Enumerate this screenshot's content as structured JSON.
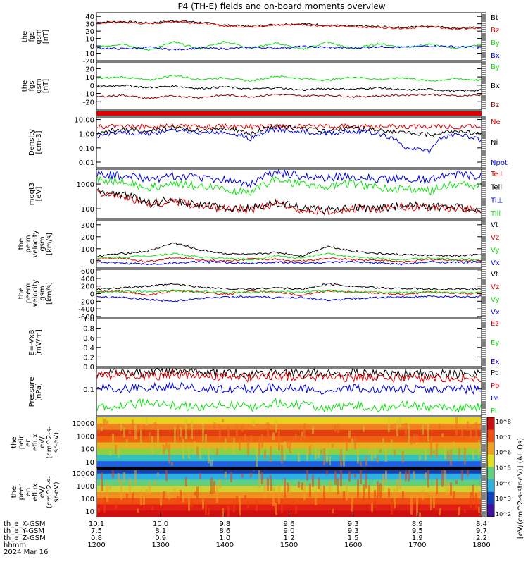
{
  "title": "P4 (TH-E) fields and on-board moments overview",
  "colors": {
    "black": "#000000",
    "red": "#e00000",
    "green": "#10e010",
    "blue": "#0000e0",
    "darkred": "#8b0000"
  },
  "chart_data": [
    {
      "type": "line",
      "ylabel": [
        "the",
        "fgs",
        "gsm",
        "[nT]"
      ],
      "yticks": [
        40,
        30,
        20,
        10,
        0,
        -10,
        -20
      ],
      "ylim": [
        -20,
        45
      ],
      "series": [
        {
          "name": "Bt",
          "color": "black",
          "values": [
            32,
            33,
            31,
            34,
            32,
            28,
            27,
            29,
            30,
            28,
            27,
            26,
            25,
            27,
            24,
            25
          ]
        },
        {
          "name": "Bz",
          "color": "red",
          "values": [
            31,
            32,
            30,
            33,
            31,
            27,
            26,
            28,
            29,
            27,
            26,
            25,
            24,
            26,
            23,
            24
          ]
        },
        {
          "name": "By",
          "color": "green",
          "values": [
            -2,
            3,
            -6,
            5,
            -4,
            6,
            -3,
            4,
            -5,
            5,
            -4,
            3,
            -2,
            2,
            -3,
            2
          ]
        },
        {
          "name": "Bx",
          "color": "blue",
          "values": [
            -3,
            -4,
            -2,
            -5,
            -3,
            -4,
            -2,
            -3,
            -1,
            -2,
            -3,
            -1,
            -2,
            0,
            -1,
            -2
          ]
        }
      ]
    },
    {
      "type": "line",
      "ylabel": [
        "the",
        "fgs",
        "gsm",
        "[nT]"
      ],
      "yticks": [
        20,
        10,
        0,
        -10,
        -20
      ],
      "ylim": [
        -30,
        28
      ],
      "series": [
        {
          "name": "By",
          "color": "green",
          "values": [
            8,
            10,
            6,
            12,
            7,
            9,
            5,
            11,
            8,
            6,
            10,
            7,
            9,
            5,
            8,
            6
          ]
        },
        {
          "name": "Bx",
          "color": "black",
          "values": [
            -2,
            0,
            -3,
            -1,
            -4,
            -2,
            -5,
            -3,
            -6,
            -4,
            -5,
            -3,
            -6,
            -5,
            -7,
            -6
          ]
        },
        {
          "name": "Bz",
          "color": "darkred",
          "values": [
            -14,
            -12,
            -16,
            -13,
            -15,
            -12,
            -14,
            -11,
            -13,
            -12,
            -14,
            -13,
            -12,
            -11,
            -13,
            -12
          ]
        }
      ]
    },
    {
      "type": "line",
      "log": true,
      "ylabel": [
        "Density",
        "[cm-3]"
      ],
      "yticks": [
        "10.00",
        "1.00",
        "0.10",
        "0.01"
      ],
      "ylim": [
        0.004,
        15
      ],
      "series": [
        {
          "name": "Ne",
          "color": "red",
          "values": [
            3,
            3.2,
            3.1,
            3.3,
            3.0,
            3.2,
            3.1,
            3.4,
            3.2,
            3.1,
            3.3,
            3.2,
            3.1,
            3.2,
            3.0,
            3.1
          ]
        },
        {
          "name": "Ni",
          "color": "black",
          "values": [
            1.2,
            2,
            1.5,
            2.5,
            1.8,
            2.2,
            1.0,
            3,
            2.0,
            1.5,
            2.5,
            1.6,
            1.2,
            0.8,
            1.5,
            0.9
          ]
        },
        {
          "name": "Npot",
          "color": "blue",
          "values": [
            0.5,
            1.2,
            0.9,
            1.5,
            1.1,
            1.4,
            0.4,
            2.0,
            1.3,
            1.0,
            1.5,
            0.9,
            0.1,
            0.05,
            0.9,
            0.3
          ]
        }
      ]
    },
    {
      "type": "line",
      "log": true,
      "ylabel": [
        "moqt3",
        "[eV]"
      ],
      "yticks": [
        "1000",
        "100"
      ],
      "ylim": [
        40,
        4000
      ],
      "series": [
        {
          "name": "Te⊥",
          "color": "red",
          "values": [
            400,
            300,
            150,
            200,
            120,
            100,
            90,
            150,
            90,
            80,
            100,
            90,
            120,
            110,
            100,
            80
          ]
        },
        {
          "name": "Tell",
          "color": "black",
          "values": [
            500,
            350,
            170,
            220,
            130,
            110,
            100,
            170,
            100,
            90,
            110,
            100,
            130,
            120,
            110,
            90
          ]
        },
        {
          "name": "Ti⊥",
          "color": "blue",
          "values": [
            2500,
            2000,
            1500,
            2000,
            1800,
            1500,
            1000,
            3000,
            2000,
            1800,
            2000,
            1600,
            1500,
            1400,
            2500,
            2000
          ]
        },
        {
          "name": "Till",
          "color": "green",
          "values": [
            1500,
            1200,
            700,
            1000,
            800,
            600,
            400,
            1500,
            900,
            800,
            1000,
            700,
            600,
            500,
            1000,
            800
          ]
        }
      ]
    },
    {
      "type": "line",
      "ylabel": [
        "the",
        "peim",
        "velocity",
        "gsm",
        "[km/s]"
      ],
      "yticks": [
        300,
        200,
        100,
        0
      ],
      "ylim": [
        -60,
        340
      ],
      "series": [
        {
          "name": "Vt",
          "color": "black",
          "values": [
            40,
            60,
            80,
            150,
            90,
            60,
            50,
            70,
            40,
            120,
            80,
            60,
            50,
            45,
            40,
            50
          ]
        },
        {
          "name": "Vz",
          "color": "red",
          "values": [
            10,
            20,
            -10,
            30,
            10,
            -5,
            15,
            10,
            -5,
            20,
            10,
            5,
            -10,
            10,
            5,
            0
          ]
        },
        {
          "name": "Vy",
          "color": "green",
          "values": [
            20,
            30,
            40,
            60,
            30,
            20,
            10,
            40,
            20,
            60,
            30,
            20,
            10,
            20,
            10,
            15
          ]
        },
        {
          "name": "Vx",
          "color": "blue",
          "values": [
            -10,
            -20,
            -30,
            -20,
            -10,
            -15,
            -25,
            -10,
            -20,
            -15,
            -10,
            -20,
            -30,
            -10,
            -15,
            -10
          ]
        }
      ]
    },
    {
      "type": "line",
      "ylabel": [
        "the",
        "peem",
        "velocity",
        "gsm",
        "[km/s]"
      ],
      "yticks": [
        600,
        400,
        200,
        0,
        -200,
        -400,
        -600
      ],
      "ylim": [
        -620,
        640
      ],
      "series": [
        {
          "name": "Vt",
          "color": "black",
          "values": [
            120,
            150,
            200,
            250,
            180,
            130,
            120,
            160,
            110,
            260,
            200,
            150,
            140,
            120,
            110,
            130
          ]
        },
        {
          "name": "Vz",
          "color": "red",
          "values": [
            50,
            60,
            -40,
            80,
            40,
            -20,
            60,
            40,
            -40,
            80,
            40,
            20,
            -30,
            40,
            20,
            10
          ]
        },
        {
          "name": "Vy",
          "color": "green",
          "values": [
            40,
            50,
            60,
            80,
            50,
            40,
            30,
            60,
            40,
            80,
            50,
            40,
            30,
            40,
            30,
            35
          ]
        },
        {
          "name": "Vx",
          "color": "blue",
          "values": [
            -80,
            -100,
            -150,
            -200,
            -120,
            -90,
            -80,
            -110,
            -90,
            -180,
            -130,
            -100,
            -90,
            -80,
            -70,
            -80
          ]
        }
      ]
    },
    {
      "type": "line",
      "ylabel": [
        "E=-VxB",
        "[mV/m]"
      ],
      "yticks": [
        "1.0",
        "0.8",
        "0.6",
        "0.4",
        "0.2",
        "0.0"
      ],
      "ylim": [
        0,
        1
      ],
      "series": [
        {
          "name": "Ez",
          "color": "red",
          "values": []
        },
        {
          "name": "Ey",
          "color": "green",
          "values": []
        },
        {
          "name": "Ex",
          "color": "blue",
          "values": []
        }
      ]
    },
    {
      "type": "line",
      "log": true,
      "ylabel": [
        "Pressure",
        "[nPa]"
      ],
      "yticks": [
        "0.1"
      ],
      "ylim": [
        0.01,
        0.6
      ],
      "series": [
        {
          "name": "Pt",
          "color": "black",
          "values": [
            0.4,
            0.42,
            0.38,
            0.45,
            0.4,
            0.37,
            0.36,
            0.4,
            0.38,
            0.36,
            0.37,
            0.36,
            0.35,
            0.36,
            0.34,
            0.35
          ]
        },
        {
          "name": "Pb",
          "color": "red",
          "values": [
            0.3,
            0.32,
            0.28,
            0.34,
            0.3,
            0.27,
            0.26,
            0.3,
            0.28,
            0.26,
            0.27,
            0.26,
            0.25,
            0.26,
            0.24,
            0.25
          ]
        },
        {
          "name": "Pe",
          "color": "blue",
          "values": [
            0.12,
            0.1,
            0.11,
            0.12,
            0.1,
            0.09,
            0.1,
            0.11,
            0.1,
            0.09,
            0.1,
            0.09,
            0.1,
            0.09,
            0.1,
            0.09
          ]
        },
        {
          "name": "Pi",
          "color": "green",
          "values": [
            0.02,
            0.025,
            0.03,
            0.025,
            0.02,
            0.025,
            0.02,
            0.03,
            0.025,
            0.02,
            0.025,
            0.02,
            0.025,
            0.02,
            0.02,
            0.02
          ]
        }
      ]
    },
    {
      "type": "heatmap",
      "ylabel": [
        "the",
        "peir",
        "en",
        "eflux",
        "eV/",
        "(cm^2-s-",
        "sr-eV)"
      ],
      "yticks": [
        "10000",
        "1000",
        "100",
        "10"
      ]
    },
    {
      "type": "heatmap",
      "ylabel": [
        "the",
        "peer",
        "en",
        "eflux",
        "eV/",
        "(cm^2-s-",
        "sr-eV)"
      ],
      "yticks": [
        "10000",
        "1000",
        "100",
        "10"
      ]
    }
  ],
  "colorbar": {
    "label": "[eV/(cm^2-s-str-eV)] (All Qs)",
    "ticks_top": [
      "10^8",
      "10^7",
      "10^6",
      "10^5",
      "10^4"
    ],
    "ticks_bottom": [
      "10^8",
      "10^7",
      "10^6",
      "10^5",
      "10^4",
      "10^3",
      "10^2"
    ]
  },
  "x_axis": {
    "rows": [
      {
        "label": "th_e_X-GSM",
        "values": [
          "10.1",
          "10.0",
          "9.8",
          "9.6",
          "9.3",
          "8.9",
          "8.4"
        ]
      },
      {
        "label": "th_e_Y-GSM",
        "values": [
          "7.5",
          "8.1",
          "8.6",
          "9.0",
          "9.3",
          "9.5",
          "9.7"
        ]
      },
      {
        "label": "th_e_Z-GSM",
        "values": [
          "0.8",
          "0.9",
          "1.0",
          "1.2",
          "1.5",
          "1.9",
          "2.2"
        ]
      },
      {
        "label": "hhmm",
        "values": [
          "1200",
          "1300",
          "1400",
          "1500",
          "1600",
          "1700",
          "1800"
        ]
      }
    ],
    "date": "2024 Mar 16"
  }
}
